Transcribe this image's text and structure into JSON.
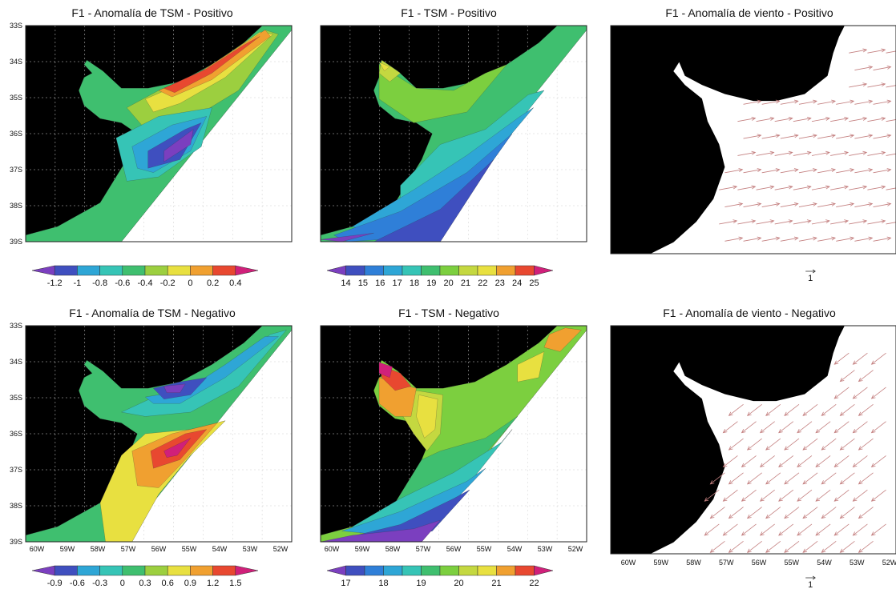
{
  "chart_data": [
    {
      "type": "heatmap",
      "title": "F1 - Anomalía de TSM -  Positivo",
      "field": "SST anomaly (positive phase)",
      "colorbar_ticks": [
        "-1.2",
        "-1",
        "-0.8",
        "-0.6",
        "-0.4",
        "-0.2",
        "0",
        "0.2",
        "0.4"
      ],
      "colors": [
        "#7b3fbf",
        "#3f4fbf",
        "#2ea6d6",
        "#36c4b6",
        "#3fbf6f",
        "#9ccf3f",
        "#e8e040",
        "#f0a030",
        "#e84830",
        "#d0207a"
      ],
      "y_ticks": [
        "33S",
        "34S",
        "35S",
        "36S",
        "37S",
        "38S",
        "39S"
      ]
    },
    {
      "type": "heatmap",
      "title": "F1 - TSM - Positivo",
      "field": "SST (positive phase)",
      "colorbar_ticks": [
        "14",
        "15",
        "16",
        "17",
        "18",
        "19",
        "20",
        "21",
        "22",
        "23",
        "24",
        "25"
      ],
      "colors": [
        "#7b3fbf",
        "#3f4fbf",
        "#2f7fd8",
        "#2ea6d6",
        "#36c4b6",
        "#3fbf6f",
        "#7ccf3f",
        "#c4d840",
        "#e8e040",
        "#f0a030",
        "#e84830",
        "#d0207a"
      ]
    },
    {
      "type": "vector",
      "title": "F1 - Anomalía de viento - Positivo",
      "field": "Wind anomaly (positive phase)",
      "arrow_direction": "east-northeast",
      "reference_vector": "1"
    },
    {
      "type": "heatmap",
      "title": "F1 - Anomalía de TSM - Negativo",
      "field": "SST anomaly (negative phase)",
      "colorbar_ticks": [
        "-0.9",
        "-0.6",
        "-0.3",
        "0",
        "0.3",
        "0.6",
        "0.9",
        "1.2",
        "1.5"
      ],
      "colors": [
        "#7b3fbf",
        "#3f4fbf",
        "#2ea6d6",
        "#36c4b6",
        "#3fbf6f",
        "#9ccf3f",
        "#e8e040",
        "#f0a030",
        "#e84830",
        "#d0207a"
      ],
      "y_ticks": [
        "33S",
        "34S",
        "35S",
        "36S",
        "37S",
        "38S",
        "39S"
      ],
      "x_ticks": [
        "60W",
        "59W",
        "58W",
        "57W",
        "56W",
        "55W",
        "54W",
        "53W",
        "52W"
      ]
    },
    {
      "type": "heatmap",
      "title": "F1 - TSM - Negativo",
      "field": "SST (negative phase)",
      "colorbar_ticks": [
        "17",
        "18",
        "19",
        "20",
        "21",
        "22"
      ],
      "colors": [
        "#7b3fbf",
        "#3f4fbf",
        "#2f7fd8",
        "#2ea6d6",
        "#36c4b6",
        "#3fbf6f",
        "#7ccf3f",
        "#c4d840",
        "#e8e040",
        "#f0a030",
        "#e84830",
        "#d0207a"
      ],
      "x_ticks": [
        "60W",
        "59W",
        "58W",
        "57W",
        "56W",
        "55W",
        "54W",
        "53W",
        "52W"
      ]
    },
    {
      "type": "vector",
      "title": "F1 - Anomalía de viento - Negativo",
      "field": "Wind anomaly (negative phase)",
      "arrow_direction": "southwest",
      "reference_vector": "1",
      "x_ticks": [
        "60W",
        "59W",
        "58W",
        "57W",
        "56W",
        "55W",
        "54W",
        "53W",
        "52W"
      ]
    }
  ],
  "land_color": "#000000",
  "arrow_color": "#c48080"
}
